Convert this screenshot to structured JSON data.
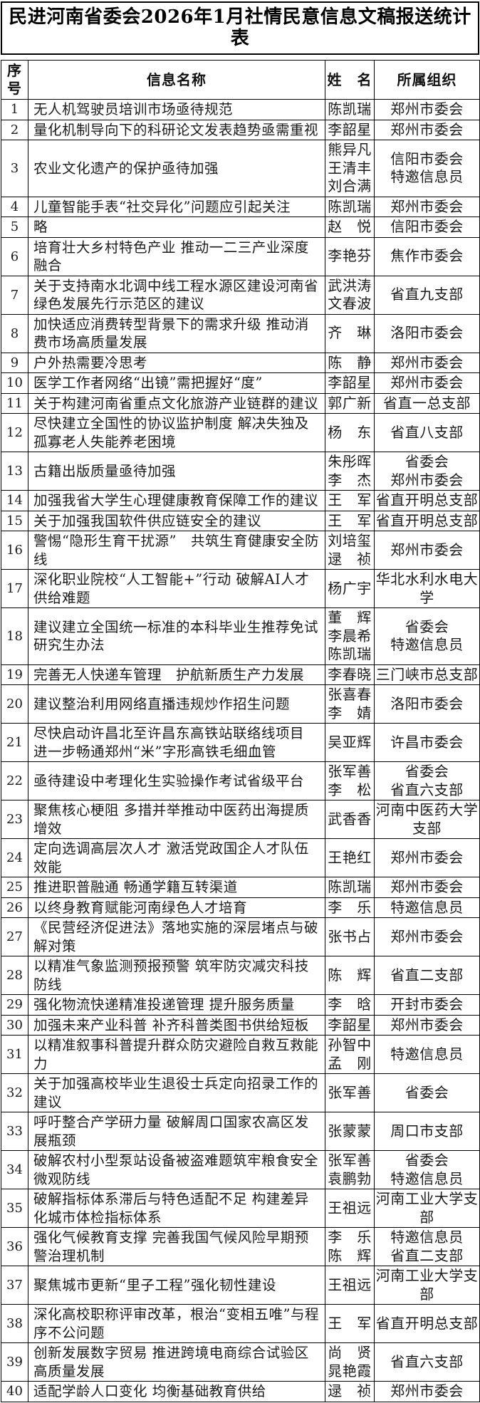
{
  "title": "民进河南省委会2026年1月社情民意信息文稿报送统计表",
  "table": {
    "headers": [
      "序号",
      "信息名称",
      "姓　名",
      "所属组织"
    ],
    "rows": [
      {
        "no": "1",
        "info": "无人机驾驶员培训市场亟待规范",
        "names": [
          "陈凯瑞"
        ],
        "orgs": [
          "郑州市委会"
        ]
      },
      {
        "no": "2",
        "info": "量化机制导向下的科研论文发表趋势亟需重视",
        "names": [
          "李韶星"
        ],
        "orgs": [
          "郑州市委会"
        ]
      },
      {
        "no": "3",
        "info": "农业文化遗产的保护亟待加强",
        "names": [
          "熊异凡",
          "王清丰",
          "刘合满"
        ],
        "orgs": [
          "信阳市委会",
          "特邀信息员"
        ]
      },
      {
        "no": "4",
        "info": "儿童智能手表“社交异化”问题应引起关注",
        "names": [
          "陈凯瑞"
        ],
        "orgs": [
          "郑州市委会"
        ]
      },
      {
        "no": "5",
        "info": "略",
        "names": [
          "赵　悦"
        ],
        "orgs": [
          "信阳市委会"
        ]
      },
      {
        "no": "6",
        "info": "培育壮大乡村特色产业 推动一二三产业深度融合",
        "names": [
          "李艳芬"
        ],
        "orgs": [
          "焦作市委会"
        ]
      },
      {
        "no": "7",
        "info": "关于支持南水北调中线工程水源区建设河南省绿色发展先行示范区的建议",
        "names": [
          "武洪涛",
          "文春波"
        ],
        "orgs": [
          "省直九支部"
        ]
      },
      {
        "no": "8",
        "info": "加快适应消费转型背景下的需求升级 推动消费市场高质量发展",
        "names": [
          "齐　琳"
        ],
        "orgs": [
          "洛阳市委会"
        ]
      },
      {
        "no": "9",
        "info": "户外热需要冷思考",
        "names": [
          "陈　静"
        ],
        "orgs": [
          "郑州市委会"
        ]
      },
      {
        "no": "10",
        "info": "医学工作者网络“出镜”需把握好“度”",
        "names": [
          "李韶星"
        ],
        "orgs": [
          "郑州市委会"
        ]
      },
      {
        "no": "11",
        "info": "关于构建河南省重点文化旅游产业链群的建议",
        "names": [
          "郭广新"
        ],
        "orgs": [
          "省直一总支部"
        ]
      },
      {
        "no": "12",
        "info": "尽快建立全国性的协议监护制度 解决失独及孤寡老人失能养老困境",
        "names": [
          "杨　东"
        ],
        "orgs": [
          "省直八支部"
        ]
      },
      {
        "no": "13",
        "info": "古籍出版质量亟待加强",
        "names": [
          "朱彤晖",
          "李　杰"
        ],
        "orgs": [
          "省委会",
          "郑州市委会"
        ]
      },
      {
        "no": "14",
        "info": "加强我省大学生心理健康教育保障工作的建议",
        "names": [
          "王　军"
        ],
        "orgs": [
          "省直开明总支部"
        ]
      },
      {
        "no": "15",
        "info": "关于加强我国软件供应链安全的建议",
        "names": [
          "王　军"
        ],
        "orgs": [
          "省直开明总支部"
        ]
      },
      {
        "no": "16",
        "info": "警惕“隐形生育干扰源”　共筑生育健康安全防线",
        "names": [
          "刘培玺",
          "逯　祯"
        ],
        "orgs": [
          "郑州市委会"
        ]
      },
      {
        "no": "17",
        "info": "深化职业院校“人工智能+”行动 破解AI人才供给难题",
        "names": [
          "杨广宇"
        ],
        "orgs": [
          "华北水利水电大学"
        ]
      },
      {
        "no": "18",
        "info": "建议建立全国统一标准的本科毕业生推荐免试研究生办法",
        "names": [
          "董　辉",
          "李晨希",
          "陈凯瑞"
        ],
        "orgs": [
          "省委会",
          "特邀信息员"
        ]
      },
      {
        "no": "19",
        "info": "完善无人快递车管理　护航新质生产力发展",
        "names": [
          "李春晓"
        ],
        "orgs": [
          "三门峡市总支部"
        ]
      },
      {
        "no": "20",
        "info": "建议整治利用网络直播违规炒作招生问题",
        "names": [
          "张喜春",
          "李　婧"
        ],
        "orgs": [
          "洛阳市委会"
        ]
      },
      {
        "no": "21",
        "info": "尽快启动许昌北至许昌东高铁站联络线项目 进一步畅通郑州“米”字形高铁毛细血管",
        "names": [
          "吴亚辉"
        ],
        "orgs": [
          "许昌市委会"
        ]
      },
      {
        "no": "22",
        "info": "亟待建设中考理化生实验操作考试省级平台",
        "names": [
          "张军善",
          "李　松"
        ],
        "orgs": [
          "省委会",
          "省直六支部"
        ]
      },
      {
        "no": "23",
        "info": "聚焦核心梗阻 多措并举推动中医药出海提质增效",
        "names": [
          "武香香"
        ],
        "orgs": [
          "河南中医药大学支部"
        ]
      },
      {
        "no": "24",
        "info": "定向选调高层次人才 激活党政国企人才队伍效能",
        "names": [
          "王艳红"
        ],
        "orgs": [
          "郑州市委会"
        ]
      },
      {
        "no": "25",
        "info": "推进职普融通 畅通学籍互转渠道",
        "names": [
          "陈凯瑞"
        ],
        "orgs": [
          "郑州市委会"
        ]
      },
      {
        "no": "26",
        "info": "以终身教育赋能河南绿色人才培育",
        "names": [
          "李　乐"
        ],
        "orgs": [
          "特邀信息员"
        ]
      },
      {
        "no": "27",
        "info": "《民营经济促进法》落地实施的深层堵点与破解对策",
        "names": [
          "张书占"
        ],
        "orgs": [
          "郑州市委会"
        ]
      },
      {
        "no": "28",
        "info": "以精准气象监测预报预警 筑牢防灾减灾科技防线",
        "names": [
          "陈　辉"
        ],
        "orgs": [
          "省直二支部"
        ]
      },
      {
        "no": "29",
        "info": "强化物流快递精准投递管理 提升服务质量",
        "names": [
          "李　晗"
        ],
        "orgs": [
          "开封市委会"
        ]
      },
      {
        "no": "30",
        "info": "加强未来产业科普 补齐科普类图书供给短板",
        "names": [
          "李韶星"
        ],
        "orgs": [
          "郑州市委会"
        ]
      },
      {
        "no": "31",
        "info": "以精准叙事科普提升群众防灾避险自救互救能力",
        "names": [
          "孙智中",
          "孟　刚"
        ],
        "orgs": [
          "特邀信息员"
        ]
      },
      {
        "no": "32",
        "info": "关于加强高校毕业生退役士兵定向招录工作的建议",
        "names": [
          "张军善"
        ],
        "orgs": [
          "省委会"
        ]
      },
      {
        "no": "33",
        "info": "呼吁整合产学研力量 破解周口国家农高区发展瓶颈",
        "names": [
          "张蒙蒙"
        ],
        "orgs": [
          "周口市支部"
        ]
      },
      {
        "no": "34",
        "info": "破解农村小型泵站设备被盗难题筑牢粮食安全微观防线",
        "names": [
          "张军善",
          "袁鹏勃"
        ],
        "orgs": [
          "省委会",
          "特邀信息员"
        ]
      },
      {
        "no": "35",
        "info": "破解指标体系滞后与特色适配不足 构建差异化城市体检指标体系",
        "names": [
          "王祖远"
        ],
        "orgs": [
          "河南工业大学支部"
        ]
      },
      {
        "no": "36",
        "info": "强化气候教育支撑 完善我国气候风险早期预警治理机制",
        "names": [
          "李　乐",
          "陈　辉"
        ],
        "orgs": [
          "特邀信息员",
          "省直二支部"
        ]
      },
      {
        "no": "37",
        "info": "聚焦城市更新“里子工程”强化韧性建设",
        "names": [
          "王祖远"
        ],
        "orgs": [
          "河南工业大学支部"
        ]
      },
      {
        "no": "38",
        "info": "深化高校职称评审改革，根治“变相五唯”与程序不公问题",
        "names": [
          "王　军"
        ],
        "orgs": [
          "省直开明总支部"
        ]
      },
      {
        "no": "39",
        "info": "创新发展数字贸易 推进跨境电商综合试验区高质量发展",
        "names": [
          "尚　贤",
          "晁艳霞"
        ],
        "orgs": [
          "省直六支部"
        ]
      },
      {
        "no": "40",
        "info": "适配学龄人口变化 均衡基础教育供给",
        "names": [
          "逯　祯"
        ],
        "orgs": [
          "郑州市委会"
        ]
      }
    ]
  }
}
